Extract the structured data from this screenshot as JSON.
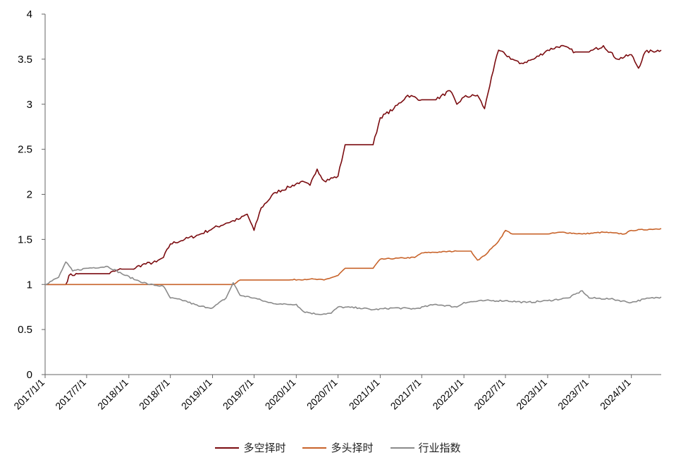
{
  "chart_data": {
    "type": "line",
    "title": "",
    "xlabel": "",
    "ylabel": "",
    "ylim": [
      0,
      4
    ],
    "y_ticks": [
      "0",
      "0.5",
      "1",
      "1.5",
      "2",
      "2.5",
      "3",
      "3.5",
      "4"
    ],
    "x_ticks": [
      "2017/1/1",
      "2017/7/1",
      "2018/1/1",
      "2018/7/1",
      "2019/1/1",
      "2019/7/1",
      "2020/1/1",
      "2020/7/1",
      "2021/1/1",
      "2021/7/1",
      "2022/1/1",
      "2022/7/1",
      "2023/1/1",
      "2023/7/1",
      "2024/1/1"
    ],
    "grid": false,
    "legend_position": "bottom",
    "series": [
      {
        "name": "多空择时",
        "color": "#7b0c10",
        "points": [
          [
            "2017/1/1",
            1.0
          ],
          [
            "2017/4/1",
            1.0
          ],
          [
            "2017/4/15",
            1.1
          ],
          [
            "2017/6/1",
            1.12
          ],
          [
            "2017/10/1",
            1.12
          ],
          [
            "2017/12/1",
            1.17
          ],
          [
            "2018/1/15",
            1.17
          ],
          [
            "2018/3/1",
            1.22
          ],
          [
            "2018/5/1",
            1.25
          ],
          [
            "2018/6/1",
            1.3
          ],
          [
            "2018/7/1",
            1.45
          ],
          [
            "2018/9/1",
            1.5
          ],
          [
            "2018/11/1",
            1.55
          ],
          [
            "2019/1/1",
            1.62
          ],
          [
            "2019/3/1",
            1.68
          ],
          [
            "2019/5/1",
            1.73
          ],
          [
            "2019/6/1",
            1.78
          ],
          [
            "2019/7/1",
            1.6
          ],
          [
            "2019/8/1",
            1.85
          ],
          [
            "2019/10/1",
            2.02
          ],
          [
            "2019/12/1",
            2.08
          ],
          [
            "2020/1/20",
            2.14
          ],
          [
            "2020/3/1",
            2.1
          ],
          [
            "2020/4/1",
            2.28
          ],
          [
            "2020/5/1",
            2.15
          ],
          [
            "2020/7/1",
            2.2
          ],
          [
            "2020/8/1",
            2.55
          ],
          [
            "2020/12/1",
            2.55
          ],
          [
            "2021/1/1",
            2.85
          ],
          [
            "2021/3/1",
            2.95
          ],
          [
            "2021/5/1",
            3.1
          ],
          [
            "2021/7/1",
            3.05
          ],
          [
            "2021/9/1",
            3.05
          ],
          [
            "2021/11/1",
            3.15
          ],
          [
            "2021/12/1",
            3.0
          ],
          [
            "2022/1/1",
            3.08
          ],
          [
            "2022/3/1",
            3.1
          ],
          [
            "2022/4/1",
            2.95
          ],
          [
            "2022/5/1",
            3.3
          ],
          [
            "2022/6/1",
            3.6
          ],
          [
            "2022/7/1",
            3.55
          ],
          [
            "2022/9/1",
            3.45
          ],
          [
            "2022/11/1",
            3.5
          ],
          [
            "2023/1/1",
            3.6
          ],
          [
            "2023/3/1",
            3.65
          ],
          [
            "2023/5/1",
            3.58
          ],
          [
            "2023/7/1",
            3.58
          ],
          [
            "2023/9/1",
            3.65
          ],
          [
            "2023/11/1",
            3.5
          ],
          [
            "2024/1/1",
            3.55
          ],
          [
            "2024/2/1",
            3.4
          ],
          [
            "2024/3/1",
            3.58
          ],
          [
            "2024/5/10",
            3.6
          ]
        ]
      },
      {
        "name": "多头择时",
        "color": "#c8632a",
        "points": [
          [
            "2017/1/1",
            1.0
          ],
          [
            "2019/1/1",
            1.0
          ],
          [
            "2019/4/1",
            1.0
          ],
          [
            "2019/5/1",
            1.05
          ],
          [
            "2019/9/1",
            1.05
          ],
          [
            "2019/12/1",
            1.05
          ],
          [
            "2020/3/1",
            1.06
          ],
          [
            "2020/5/1",
            1.05
          ],
          [
            "2020/7/1",
            1.1
          ],
          [
            "2020/8/1",
            1.18
          ],
          [
            "2020/12/1",
            1.18
          ],
          [
            "2021/1/1",
            1.28
          ],
          [
            "2021/6/1",
            1.3
          ],
          [
            "2021/7/1",
            1.35
          ],
          [
            "2021/12/1",
            1.37
          ],
          [
            "2022/2/1",
            1.37
          ],
          [
            "2022/3/1",
            1.27
          ],
          [
            "2022/4/1",
            1.32
          ],
          [
            "2022/5/1",
            1.4
          ],
          [
            "2022/6/1",
            1.48
          ],
          [
            "2022/7/1",
            1.6
          ],
          [
            "2022/8/1",
            1.56
          ],
          [
            "2023/1/1",
            1.56
          ],
          [
            "2023/3/1",
            1.58
          ],
          [
            "2023/6/1",
            1.56
          ],
          [
            "2023/9/1",
            1.58
          ],
          [
            "2023/12/1",
            1.56
          ],
          [
            "2024/1/1",
            1.6
          ],
          [
            "2024/5/10",
            1.62
          ]
        ]
      },
      {
        "name": "行业指数",
        "color": "#8a8a8a",
        "points": [
          [
            "2017/1/1",
            1.0
          ],
          [
            "2017/3/1",
            1.08
          ],
          [
            "2017/4/1",
            1.25
          ],
          [
            "2017/5/1",
            1.15
          ],
          [
            "2017/7/1",
            1.18
          ],
          [
            "2017/10/1",
            1.2
          ],
          [
            "2017/12/1",
            1.12
          ],
          [
            "2018/2/1",
            1.05
          ],
          [
            "2018/4/1",
            1.0
          ],
          [
            "2018/6/1",
            0.98
          ],
          [
            "2018/7/1",
            0.85
          ],
          [
            "2018/9/1",
            0.82
          ],
          [
            "2018/11/1",
            0.76
          ],
          [
            "2019/1/1",
            0.74
          ],
          [
            "2019/3/1",
            0.85
          ],
          [
            "2019/4/1",
            1.02
          ],
          [
            "2019/5/1",
            0.88
          ],
          [
            "2019/7/1",
            0.85
          ],
          [
            "2019/9/1",
            0.8
          ],
          [
            "2019/11/1",
            0.78
          ],
          [
            "2020/1/1",
            0.78
          ],
          [
            "2020/2/1",
            0.7
          ],
          [
            "2020/4/1",
            0.67
          ],
          [
            "2020/6/1",
            0.68
          ],
          [
            "2020/7/1",
            0.75
          ],
          [
            "2020/10/1",
            0.74
          ],
          [
            "2020/12/1",
            0.72
          ],
          [
            "2021/3/1",
            0.74
          ],
          [
            "2021/6/1",
            0.73
          ],
          [
            "2021/9/1",
            0.78
          ],
          [
            "2021/12/1",
            0.75
          ],
          [
            "2022/1/1",
            0.8
          ],
          [
            "2022/4/1",
            0.82
          ],
          [
            "2022/7/1",
            0.82
          ],
          [
            "2022/10/1",
            0.8
          ],
          [
            "2023/1/1",
            0.82
          ],
          [
            "2023/4/1",
            0.85
          ],
          [
            "2023/6/1",
            0.93
          ],
          [
            "2023/7/1",
            0.85
          ],
          [
            "2023/10/1",
            0.84
          ],
          [
            "2024/1/1",
            0.8
          ],
          [
            "2024/3/1",
            0.84
          ],
          [
            "2024/5/10",
            0.86
          ]
        ]
      }
    ]
  }
}
